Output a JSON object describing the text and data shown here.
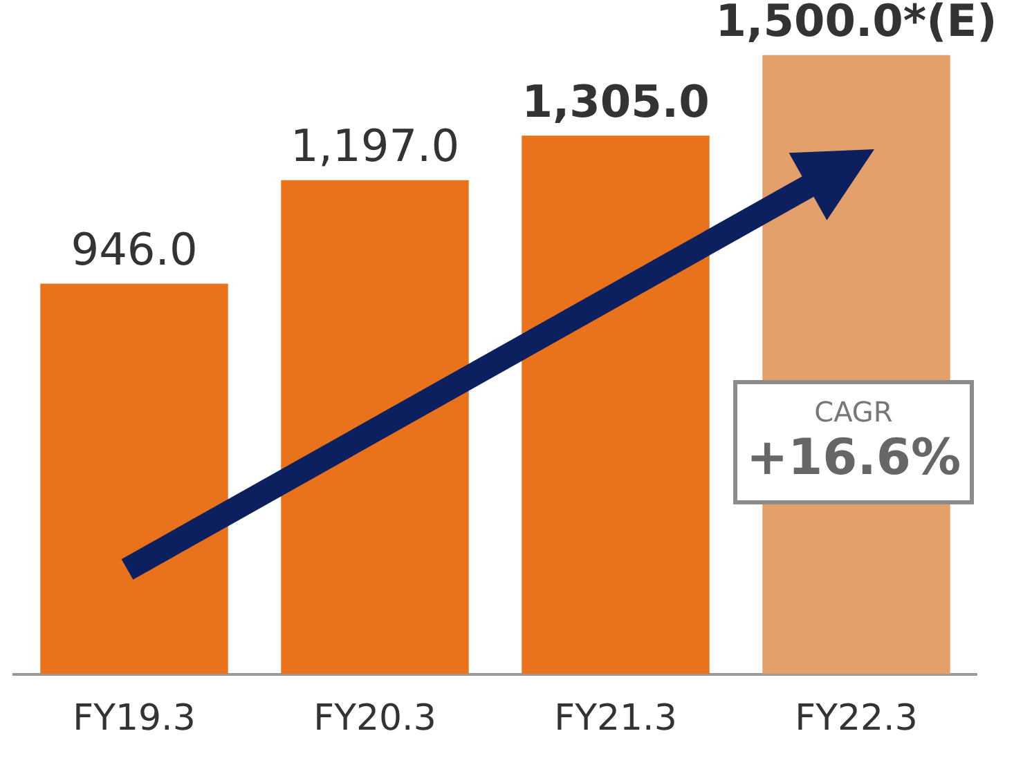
{
  "chart_data": {
    "type": "bar",
    "categories": [
      "FY19.3",
      "FY20.3",
      "FY21.3",
      "FY22.3"
    ],
    "values": [
      946.0,
      1197.0,
      1305.0,
      1500.0
    ],
    "colors": [
      "#e8731c",
      "#e8731c",
      "#e8731c",
      "#e4a06a"
    ],
    "value_labels": [
      "946.0",
      "1,197.0",
      "1,305.0",
      "1,500.0*(E)"
    ],
    "annotations": [
      "CAGR",
      "+16.6%"
    ],
    "grid": false,
    "legend": false
  }
}
